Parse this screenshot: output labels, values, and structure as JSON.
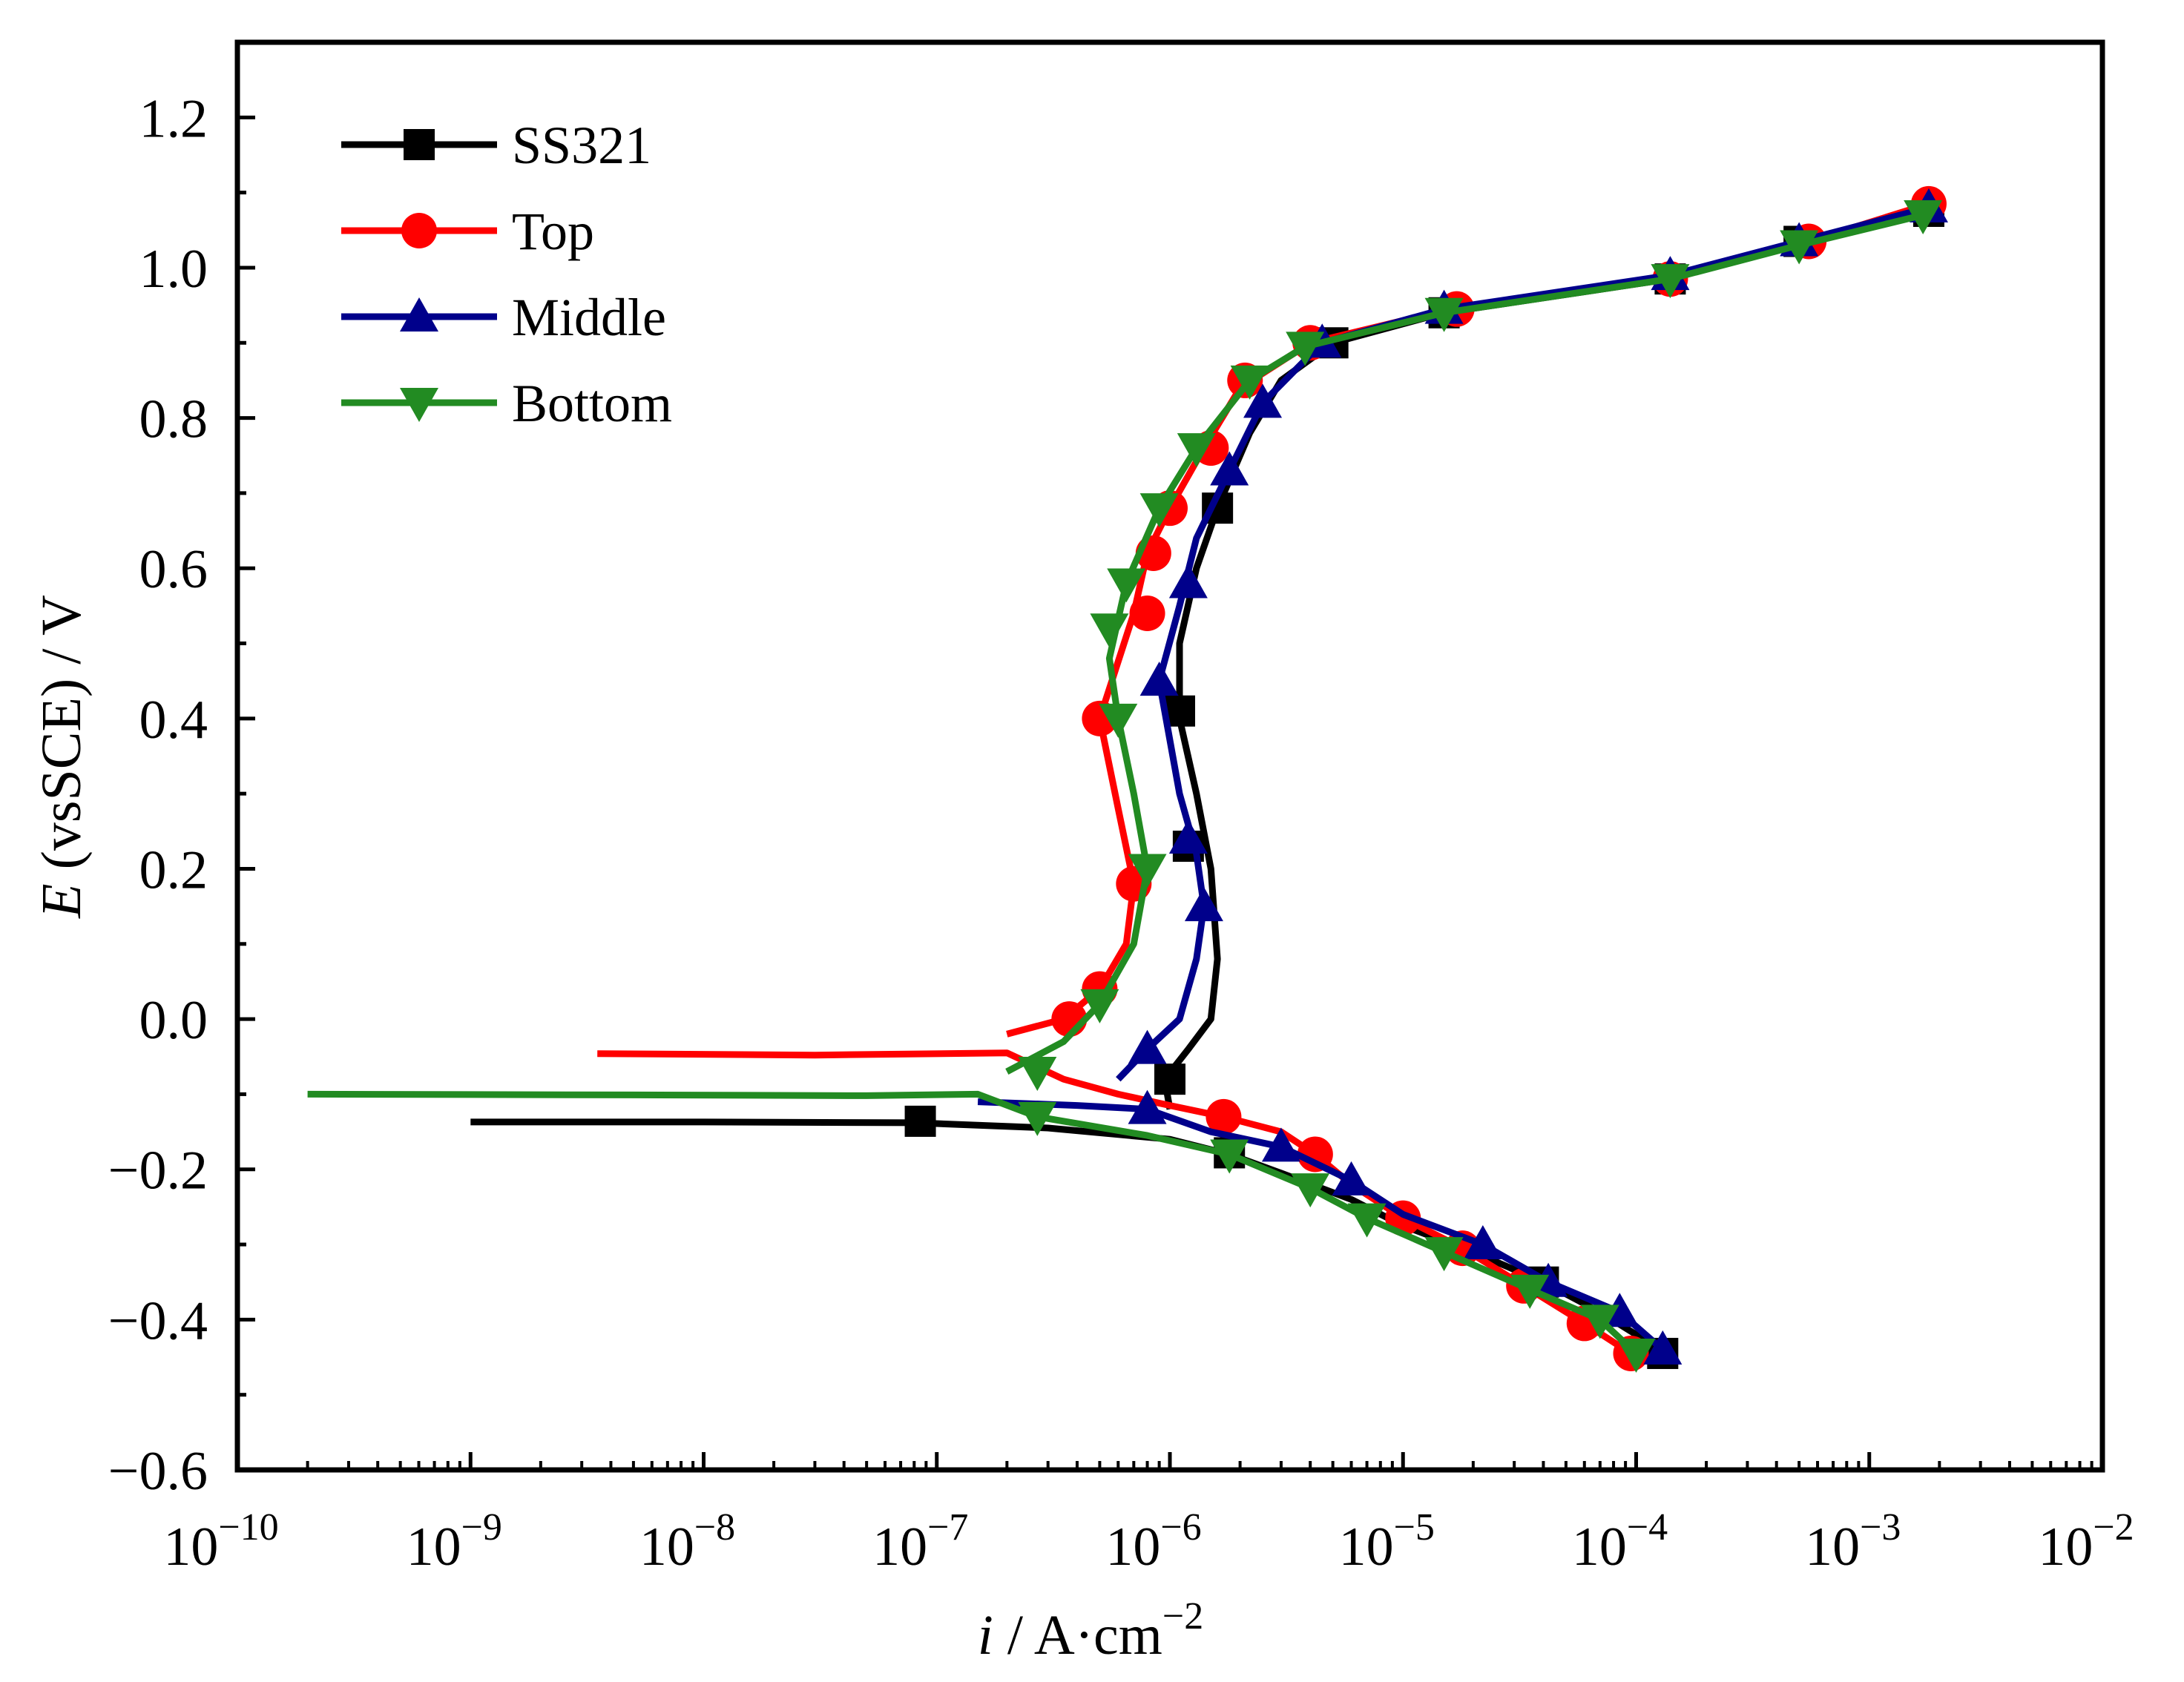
{
  "chart_data": {
    "type": "line",
    "title": "",
    "xscale": "log",
    "xlabel": {
      "italic": "i",
      "rest": " / A·cm",
      "sup": "−2"
    },
    "ylabel": {
      "italic": "E",
      "rest": " (vsSCE) / V"
    },
    "xlim": [
      1e-10,
      0.01
    ],
    "ylim": [
      -0.6,
      1.3
    ],
    "x_ticks": [
      {
        "exp": -10,
        "base": "10",
        "sup": "−10"
      },
      {
        "exp": -9,
        "base": "10",
        "sup": "−9"
      },
      {
        "exp": -8,
        "base": "10",
        "sup": "−8"
      },
      {
        "exp": -7,
        "base": "10",
        "sup": "−7"
      },
      {
        "exp": -6,
        "base": "10",
        "sup": "−6"
      },
      {
        "exp": -5,
        "base": "10",
        "sup": "−5"
      },
      {
        "exp": -4,
        "base": "10",
        "sup": "−4"
      },
      {
        "exp": -3,
        "base": "10",
        "sup": "−3"
      },
      {
        "exp": -2,
        "base": "10",
        "sup": "−2"
      }
    ],
    "y_ticks": [
      {
        "value": -0.6,
        "label": "−0.6"
      },
      {
        "value": -0.4,
        "label": "−0.4"
      },
      {
        "value": -0.2,
        "label": "−0.2"
      },
      {
        "value": 0.0,
        "label": "0.0"
      },
      {
        "value": 0.2,
        "label": "0.2"
      },
      {
        "value": 0.4,
        "label": "0.4"
      },
      {
        "value": 0.6,
        "label": "0.6"
      },
      {
        "value": 0.8,
        "label": "0.8"
      },
      {
        "value": 1.0,
        "label": "1.0"
      },
      {
        "value": 1.2,
        "label": "1.2"
      }
    ],
    "legend_position": "top-left",
    "series": [
      {
        "name": "SS321",
        "color": "#000000",
        "marker": "square",
        "points": [
          [
            1e-09,
            -0.137
          ],
          [
            1e-08,
            -0.137
          ],
          [
            8e-08,
            -0.138
          ],
          [
            3e-07,
            -0.145
          ],
          [
            1e-06,
            -0.16
          ],
          [
            1.8e-06,
            -0.18
          ],
          [
            3e-06,
            -0.205
          ],
          [
            6e-06,
            -0.24
          ],
          [
            1e-05,
            -0.275
          ],
          [
            2e-05,
            -0.31
          ],
          [
            4e-05,
            -0.35
          ],
          [
            7e-05,
            -0.39
          ],
          [
            0.0001,
            -0.42
          ],
          [
            0.00013,
            -0.445
          ],
          [
            1e-06,
            -0.12
          ],
          [
            9.5e-07,
            -0.08
          ],
          [
            1.2e-06,
            -0.04
          ],
          [
            1.5e-06,
            0.0
          ],
          [
            1.6e-06,
            0.08
          ],
          [
            1.5e-06,
            0.2
          ],
          [
            1.3e-06,
            0.3
          ],
          [
            1.1e-06,
            0.4
          ],
          [
            1.1e-06,
            0.5
          ],
          [
            1.3e-06,
            0.6
          ],
          [
            1.6e-06,
            0.68
          ],
          [
            2.2e-06,
            0.78
          ],
          [
            3e-06,
            0.85
          ],
          [
            5e-06,
            0.9
          ],
          [
            1.5e-05,
            0.94
          ],
          [
            0.00014,
            0.985
          ],
          [
            0.0005,
            1.035
          ],
          [
            0.0018,
            1.075
          ]
        ],
        "marker_points": [
          [
            8.5e-08,
            -0.136
          ],
          [
            1.8e-06,
            -0.178
          ],
          [
            1e-06,
            -0.08
          ],
          [
            1.2e-06,
            0.23
          ],
          [
            1.1e-06,
            0.41
          ],
          [
            1.6e-06,
            0.68
          ],
          [
            5e-06,
            0.9
          ],
          [
            1.5e-05,
            0.94
          ],
          [
            0.00014,
            0.985
          ],
          [
            0.0005,
            1.035
          ],
          [
            0.0018,
            1.075
          ],
          [
            4e-05,
            -0.35
          ],
          [
            0.00013,
            -0.445
          ]
        ]
      },
      {
        "name": "Top",
        "color": "#ff0000",
        "marker": "circle",
        "points": [
          [
            3.5e-09,
            -0.046
          ],
          [
            3e-08,
            -0.048
          ],
          [
            2e-07,
            -0.045
          ],
          [
            3.5e-07,
            -0.08
          ],
          [
            6e-07,
            -0.1
          ],
          [
            1e-06,
            -0.115
          ],
          [
            1.7e-06,
            -0.13
          ],
          [
            3e-06,
            -0.15
          ],
          [
            4.2e-06,
            -0.18
          ],
          [
            6e-06,
            -0.22
          ],
          [
            1e-05,
            -0.265
          ],
          [
            1.8e-05,
            -0.305
          ],
          [
            3.3e-05,
            -0.355
          ],
          [
            6e-05,
            -0.405
          ],
          [
            9.5e-05,
            -0.445
          ],
          [
            2e-07,
            -0.02
          ],
          [
            3.5e-07,
            0.0
          ],
          [
            5e-07,
            0.04
          ],
          [
            6.5e-07,
            0.1
          ],
          [
            7e-07,
            0.18
          ],
          [
            6e-07,
            0.28
          ],
          [
            5e-07,
            0.4
          ],
          [
            7e-07,
            0.54
          ],
          [
            8e-07,
            0.62
          ],
          [
            1e-06,
            0.68
          ],
          [
            1.4e-06,
            0.76
          ],
          [
            2e-06,
            0.84
          ],
          [
            4e-06,
            0.9
          ],
          [
            1.6e-05,
            0.945
          ],
          [
            0.00014,
            0.985
          ],
          [
            0.00055,
            1.035
          ],
          [
            0.0018,
            1.085
          ]
        ],
        "marker_points": [
          [
            3.7e-07,
            0.0
          ],
          [
            5e-07,
            0.04
          ],
          [
            7e-07,
            0.18
          ],
          [
            5e-07,
            0.4
          ],
          [
            8e-07,
            0.54
          ],
          [
            8.5e-07,
            0.62
          ],
          [
            1e-06,
            0.68
          ],
          [
            1.5e-06,
            0.76
          ],
          [
            2.1e-06,
            0.85
          ],
          [
            4e-06,
            0.9
          ],
          [
            1.7e-05,
            0.945
          ],
          [
            0.00014,
            0.985
          ],
          [
            0.00055,
            1.035
          ],
          [
            0.0018,
            1.085
          ],
          [
            1.7e-06,
            -0.13
          ],
          [
            4.2e-06,
            -0.18
          ],
          [
            1e-05,
            -0.265
          ],
          [
            1.8e-05,
            -0.305
          ],
          [
            3.3e-05,
            -0.355
          ],
          [
            6e-05,
            -0.405
          ],
          [
            9.5e-05,
            -0.445
          ]
        ]
      },
      {
        "name": "Middle",
        "color": "#00008b",
        "marker": "triangle-up",
        "points": [
          [
            1.5e-07,
            -0.11
          ],
          [
            4e-07,
            -0.115
          ],
          [
            8e-07,
            -0.12
          ],
          [
            1.5e-06,
            -0.15
          ],
          [
            3e-06,
            -0.17
          ],
          [
            6e-06,
            -0.215
          ],
          [
            1e-05,
            -0.26
          ],
          [
            2.2e-05,
            -0.3
          ],
          [
            4.2e-05,
            -0.35
          ],
          [
            8.5e-05,
            -0.39
          ],
          [
            0.00013,
            -0.44
          ],
          [
            6e-07,
            -0.08
          ],
          [
            8e-07,
            -0.04
          ],
          [
            1.1e-06,
            0.0
          ],
          [
            1.3e-06,
            0.08
          ],
          [
            1.4e-06,
            0.15
          ],
          [
            1.3e-06,
            0.22
          ],
          [
            1.1e-06,
            0.3
          ],
          [
            9e-07,
            0.45
          ],
          [
            1.1e-06,
            0.55
          ],
          [
            1.3e-06,
            0.64
          ],
          [
            1.8e-06,
            0.73
          ],
          [
            2.5e-06,
            0.82
          ],
          [
            4.5e-06,
            0.9
          ],
          [
            1.5e-05,
            0.945
          ],
          [
            0.00014,
            0.99
          ],
          [
            0.0005,
            1.035
          ],
          [
            0.0018,
            1.08
          ]
        ],
        "marker_points": [
          [
            8e-07,
            -0.04
          ],
          [
            1.4e-06,
            0.15
          ],
          [
            1.2e-06,
            0.24
          ],
          [
            9e-07,
            0.45
          ],
          [
            1.2e-06,
            0.58
          ],
          [
            1.8e-06,
            0.73
          ],
          [
            2.5e-06,
            0.82
          ],
          [
            4.5e-06,
            0.9
          ],
          [
            1.5e-05,
            0.945
          ],
          [
            0.00014,
            0.99
          ],
          [
            0.0005,
            1.035
          ],
          [
            0.0018,
            1.08
          ],
          [
            8e-07,
            -0.12
          ],
          [
            3e-06,
            -0.17
          ],
          [
            6e-06,
            -0.215
          ],
          [
            2.2e-05,
            -0.3
          ],
          [
            4.2e-05,
            -0.35
          ],
          [
            8.5e-05,
            -0.39
          ],
          [
            0.00013,
            -0.44
          ]
        ]
      },
      {
        "name": "Bottom",
        "color": "#228b22",
        "marker": "triangle-down",
        "points": [
          [
            2e-10,
            -0.1
          ],
          [
            5e-09,
            -0.101
          ],
          [
            5e-08,
            -0.102
          ],
          [
            1.5e-07,
            -0.1
          ],
          [
            2.7e-07,
            -0.13
          ],
          [
            8e-07,
            -0.155
          ],
          [
            1.8e-06,
            -0.18
          ],
          [
            4e-06,
            -0.225
          ],
          [
            7e-06,
            -0.265
          ],
          [
            1.5e-05,
            -0.31
          ],
          [
            3.5e-05,
            -0.36
          ],
          [
            7e-05,
            -0.4
          ],
          [
            0.0001,
            -0.445
          ],
          [
            2e-07,
            -0.07
          ],
          [
            3.5e-07,
            -0.03
          ],
          [
            5e-07,
            0.02
          ],
          [
            7e-07,
            0.1
          ],
          [
            8e-07,
            0.2
          ],
          [
            7e-07,
            0.3
          ],
          [
            6e-07,
            0.4
          ],
          [
            5.5e-07,
            0.48
          ],
          [
            6.5e-07,
            0.58
          ],
          [
            9e-07,
            0.68
          ],
          [
            1.3e-06,
            0.76
          ],
          [
            2.2e-06,
            0.85
          ],
          [
            3.8e-06,
            0.895
          ],
          [
            1.5e-05,
            0.94
          ],
          [
            0.00014,
            0.985
          ],
          [
            0.0005,
            1.03
          ],
          [
            0.0017,
            1.07
          ]
        ],
        "marker_points": [
          [
            2.7e-07,
            -0.13
          ],
          [
            1.8e-06,
            -0.18
          ],
          [
            4e-06,
            -0.225
          ],
          [
            7e-06,
            -0.265
          ],
          [
            1.5e-05,
            -0.31
          ],
          [
            3.5e-05,
            -0.36
          ],
          [
            7e-05,
            -0.4
          ],
          [
            0.0001,
            -0.445
          ],
          [
            2.7e-07,
            -0.07
          ],
          [
            5e-07,
            0.02
          ],
          [
            8e-07,
            0.2
          ],
          [
            6e-07,
            0.4
          ],
          [
            5.5e-07,
            0.52
          ],
          [
            6.5e-07,
            0.58
          ],
          [
            9e-07,
            0.68
          ],
          [
            1.3e-06,
            0.76
          ],
          [
            2.2e-06,
            0.85
          ],
          [
            3.8e-06,
            0.895
          ],
          [
            1.5e-05,
            0.94
          ],
          [
            0.00014,
            0.985
          ],
          [
            0.0005,
            1.03
          ],
          [
            0.0017,
            1.07
          ]
        ]
      }
    ]
  }
}
